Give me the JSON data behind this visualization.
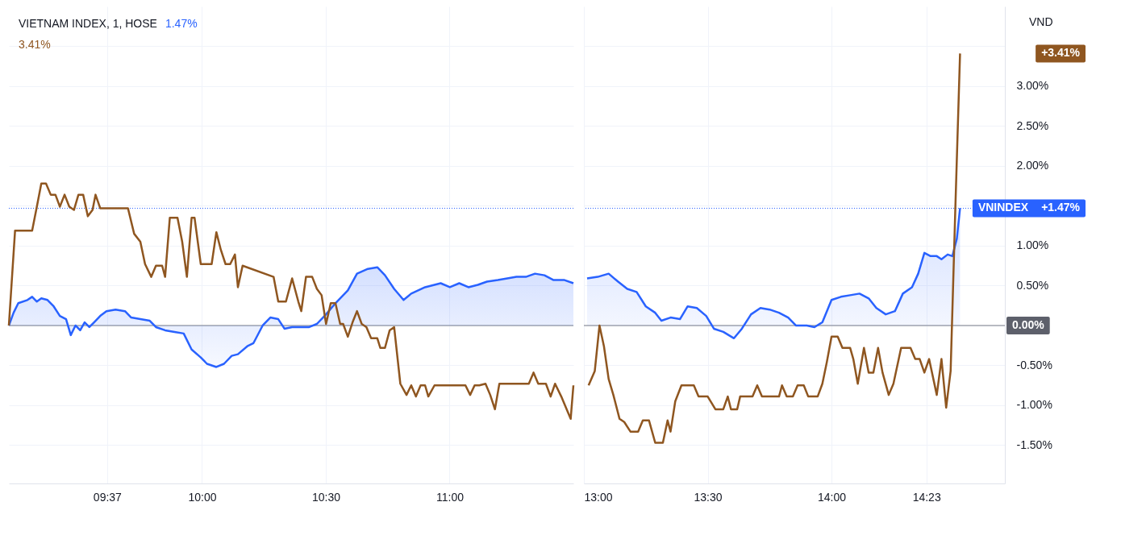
{
  "chart_data": [
    {
      "type": "line",
      "title": "VIETNAM INDEX, 1, HOSE",
      "annotations": [
        "1.47%",
        "3.41%"
      ],
      "xlim": [
        9.22,
        11.5
      ],
      "xticks": [
        {
          "value": 9.617,
          "label": "09:37"
        },
        {
          "value": 10,
          "label": "10:00"
        },
        {
          "value": 10.5,
          "label": "10:30"
        },
        {
          "value": 11,
          "label": "11:00"
        }
      ],
      "ylim": [
        -1.98,
        4.0
      ],
      "yticks": [
        -1.5,
        -1,
        -0.5,
        0,
        0.5,
        1,
        1.5,
        2,
        2.5,
        3,
        3.5
      ],
      "tick_labels": "x",
      "grid": true,
      "ref_lines": [
        {
          "axis": "y",
          "value": 0,
          "color": "#787b86",
          "line_style": "solid"
        },
        {
          "axis": "y",
          "value": 1.47,
          "color": "#2962ff",
          "line_style": "dotted"
        }
      ],
      "series": [
        {
          "type": "area",
          "color": "#2962ff",
          "x": [
            9.22,
            9.239,
            9.258,
            9.295,
            9.314,
            9.333,
            9.351,
            9.376,
            9.401,
            9.426,
            9.451,
            9.47,
            9.489,
            9.508,
            9.526,
            9.545,
            9.564,
            9.589,
            9.614,
            9.651,
            9.689,
            9.714,
            9.751,
            9.789,
            9.814,
            9.851,
            9.889,
            9.926,
            9.958,
            9.995,
            10.02,
            10.058,
            10.089,
            10.12,
            10.145,
            10.183,
            10.208,
            10.245,
            10.276,
            10.308,
            10.333,
            10.364,
            10.433,
            10.464,
            10.501,
            10.539,
            10.589,
            10.626,
            10.67,
            10.708,
            10.739,
            10.776,
            10.814,
            10.845,
            10.901,
            10.964,
            11.001,
            11.039,
            11.076,
            11.114,
            11.151,
            11.195,
            11.233,
            11.27,
            11.308,
            11.345,
            11.383,
            11.42,
            11.464,
            11.5
          ],
          "values": [
            0,
            0.16,
            0.28,
            0.32,
            0.36,
            0.3,
            0.34,
            0.32,
            0.24,
            0.12,
            0.08,
            -0.12,
            0,
            -0.06,
            0.04,
            -0.02,
            0.04,
            0.12,
            0.18,
            0.2,
            0.18,
            0.1,
            0.08,
            0.06,
            -0.02,
            -0.06,
            -0.08,
            -0.1,
            -0.3,
            -0.4,
            -0.48,
            -0.52,
            -0.48,
            -0.38,
            -0.36,
            -0.26,
            -0.22,
            0,
            0.1,
            0.08,
            -0.04,
            -0.02,
            -0.02,
            0.02,
            0.14,
            0.28,
            0.44,
            0.65,
            0.71,
            0.73,
            0.63,
            0.46,
            0.32,
            0.4,
            0.48,
            0.53,
            0.48,
            0.53,
            0.48,
            0.51,
            0.55,
            0.57,
            0.59,
            0.61,
            0.61,
            0.65,
            0.63,
            0.57,
            0.57,
            0.53
          ]
        },
        {
          "color": "#8f5620",
          "x": [
            9.22,
            9.245,
            9.314,
            9.333,
            9.351,
            9.37,
            9.389,
            9.408,
            9.426,
            9.445,
            9.464,
            9.483,
            9.501,
            9.52,
            9.539,
            9.558,
            9.57,
            9.589,
            9.701,
            9.726,
            9.751,
            9.77,
            9.795,
            9.814,
            9.839,
            9.851,
            9.87,
            9.901,
            9.92,
            9.939,
            9.958,
            9.97,
            9.995,
            10.039,
            10.058,
            10.076,
            10.095,
            10.114,
            10.133,
            10.145,
            10.164,
            10.289,
            10.308,
            10.339,
            10.364,
            10.389,
            10.401,
            10.42,
            10.445,
            10.464,
            10.483,
            10.501,
            10.52,
            10.539,
            10.558,
            10.57,
            10.589,
            10.608,
            10.626,
            10.645,
            10.664,
            10.683,
            10.708,
            10.72,
            10.739,
            10.758,
            10.776,
            10.801,
            10.826,
            10.845,
            10.864,
            10.883,
            10.901,
            10.914,
            10.939,
            11.064,
            11.083,
            11.101,
            11.12,
            11.145,
            11.164,
            11.183,
            11.201,
            11.32,
            11.339,
            11.358,
            11.389,
            11.408,
            11.426,
            11.451,
            11.489,
            11.5
          ],
          "values": [
            0,
            1.19,
            1.19,
            1.49,
            1.78,
            1.78,
            1.64,
            1.64,
            1.49,
            1.64,
            1.49,
            1.45,
            1.64,
            1.64,
            1.37,
            1.45,
            1.64,
            1.47,
            1.47,
            1.15,
            1.05,
            0.77,
            0.61,
            0.75,
            0.75,
            0.61,
            1.35,
            1.35,
            1.05,
            0.61,
            1.35,
            1.35,
            0.77,
            0.77,
            1.17,
            0.95,
            0.77,
            0.77,
            0.89,
            0.48,
            0.75,
            0.61,
            0.3,
            0.3,
            0.59,
            0.3,
            0.18,
            0.61,
            0.61,
            0.46,
            0.38,
            0.02,
            0.28,
            0.28,
            0.02,
            0.02,
            -0.14,
            0.04,
            0.18,
            0.02,
            -0.02,
            -0.16,
            -0.16,
            -0.28,
            -0.28,
            -0.06,
            -0.02,
            -0.73,
            -0.87,
            -0.75,
            -0.89,
            -0.75,
            -0.75,
            -0.89,
            -0.75,
            -0.75,
            -0.87,
            -0.75,
            -0.75,
            -0.73,
            -0.87,
            -1.05,
            -0.73,
            -0.73,
            -0.59,
            -0.73,
            -0.73,
            -0.89,
            -0.73,
            -0.89,
            -1.17,
            -0.75
          ]
        }
      ]
    },
    {
      "type": "line",
      "ylabel": "VND",
      "annotations": [
        "+1.47%",
        "+3.41%"
      ],
      "xlim": [
        13.0,
        14.7
      ],
      "xticks": [
        {
          "value": 13,
          "label": "13:00"
        },
        {
          "value": 13.5,
          "label": "13:30"
        },
        {
          "value": 14,
          "label": "14:00"
        },
        {
          "value": 14.383,
          "label": "14:23"
        }
      ],
      "ylim": [
        -1.98,
        4.0
      ],
      "yticks": [
        {
          "value": -1.5,
          "label": "-1.50%"
        },
        {
          "value": -1,
          "label": "-1.00%"
        },
        {
          "value": -0.5,
          "label": "-0.50%"
        },
        {
          "value": 0,
          "label": null
        },
        {
          "value": 0.5,
          "label": "0.50%"
        },
        {
          "value": 1,
          "label": "1.00%"
        },
        {
          "value": 1.5,
          "label": null
        },
        {
          "value": 2,
          "label": "2.00%"
        },
        {
          "value": 2.5,
          "label": "2.50%"
        },
        {
          "value": 3,
          "label": "3.00%"
        },
        {
          "value": 3.5,
          "label": null
        }
      ],
      "grid": true,
      "ref_lines": [
        {
          "axis": "y",
          "value": 0,
          "label": "0.00%",
          "color": "#787b86",
          "line_style": "solid"
        },
        {
          "axis": "y",
          "value": 1.47,
          "color": "#2962ff",
          "line_style": "dotted"
        }
      ],
      "series": [
        {
          "name": "VNINDEX",
          "type": "area",
          "color": "#2962ff",
          "x": [
            13.013,
            13.056,
            13.1,
            13.138,
            13.175,
            13.213,
            13.25,
            13.288,
            13.313,
            13.35,
            13.388,
            13.419,
            13.456,
            13.494,
            13.525,
            13.563,
            13.606,
            13.638,
            13.675,
            13.713,
            13.75,
            13.788,
            13.825,
            13.856,
            13.9,
            13.931,
            13.963,
            14.0,
            14.038,
            14.075,
            14.113,
            14.15,
            14.181,
            14.219,
            14.256,
            14.288,
            14.325,
            14.35,
            14.375,
            14.4,
            14.425,
            14.444,
            14.469,
            14.488,
            14.506,
            14.519
          ],
          "values": [
            0.59,
            0.61,
            0.65,
            0.55,
            0.46,
            0.42,
            0.24,
            0.16,
            0.06,
            0.1,
            0.08,
            0.24,
            0.22,
            0.12,
            -0.04,
            -0.08,
            -0.16,
            -0.04,
            0.14,
            0.22,
            0.2,
            0.16,
            0.1,
            0,
            0,
            -0.02,
            0.04,
            0.32,
            0.36,
            0.38,
            0.4,
            0.34,
            0.22,
            0.14,
            0.18,
            0.4,
            0.48,
            0.65,
            0.91,
            0.87,
            0.87,
            0.83,
            0.89,
            0.87,
            1.09,
            1.47
          ]
        },
        {
          "color": "#8f5620",
          "x": [
            13.019,
            13.044,
            13.063,
            13.081,
            13.1,
            13.119,
            13.144,
            13.163,
            13.188,
            13.219,
            13.238,
            13.263,
            13.288,
            13.319,
            13.338,
            13.35,
            13.369,
            13.394,
            13.444,
            13.463,
            13.5,
            13.531,
            13.563,
            13.581,
            13.594,
            13.619,
            13.631,
            13.681,
            13.7,
            13.719,
            13.788,
            13.8,
            13.819,
            13.844,
            13.863,
            13.888,
            13.906,
            13.944,
            13.963,
            13.981,
            14.0,
            14.025,
            14.044,
            14.075,
            14.088,
            14.106,
            14.131,
            14.15,
            14.169,
            14.188,
            14.206,
            14.231,
            14.25,
            14.281,
            14.319,
            14.338,
            14.356,
            14.375,
            14.394,
            14.425,
            14.444,
            14.463,
            14.481,
            14.5,
            14.519
          ],
          "values": [
            -0.75,
            -0.57,
            0,
            -0.26,
            -0.67,
            -0.87,
            -1.17,
            -1.21,
            -1.33,
            -1.33,
            -1.19,
            -1.19,
            -1.47,
            -1.47,
            -1.19,
            -1.33,
            -0.95,
            -0.75,
            -0.75,
            -0.89,
            -0.89,
            -1.05,
            -1.05,
            -0.89,
            -1.05,
            -1.05,
            -0.89,
            -0.89,
            -0.75,
            -0.89,
            -0.89,
            -0.75,
            -0.89,
            -0.89,
            -0.75,
            -0.75,
            -0.89,
            -0.89,
            -0.73,
            -0.46,
            -0.14,
            -0.14,
            -0.28,
            -0.28,
            -0.42,
            -0.73,
            -0.28,
            -0.59,
            -0.59,
            -0.28,
            -0.59,
            -0.87,
            -0.73,
            -0.28,
            -0.28,
            -0.42,
            -0.42,
            -0.59,
            -0.42,
            -0.87,
            -0.42,
            -1.03,
            -0.57,
            1.47,
            3.41
          ]
        }
      ]
    }
  ]
}
